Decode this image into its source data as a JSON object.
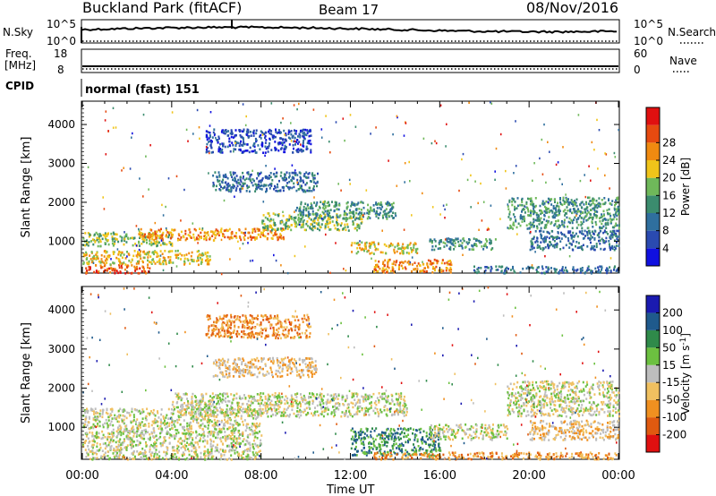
{
  "header": {
    "station": "Buckland Park (fitACF)",
    "beam": "Beam 17",
    "date": "08/Nov/2016"
  },
  "sky_panel": {
    "left_label": "N.Sky",
    "left_top_tick": "10^5",
    "left_bottom_tick": "10^0",
    "right_label": "N.Search",
    "right_top_tick": "10^5",
    "right_bottom_tick": "10^0"
  },
  "freq_panel": {
    "left_label_line1": "Freq.",
    "left_label_line2": "[MHz]",
    "left_top_tick": "18",
    "left_bottom_tick": "8",
    "right_label": "Nave",
    "right_top_tick": "60",
    "right_bottom_tick": "0"
  },
  "cpid": {
    "label": "CPID",
    "mode": "normal (fast) 151"
  },
  "chart_data": [
    {
      "type": "heatmap",
      "name": "power",
      "ylabel": "Slant Range [km]",
      "xlabel": "Time UT",
      "x_ticks": [
        "00:00",
        "04:00",
        "08:00",
        "12:00",
        "16:00",
        "20:00",
        "00:00"
      ],
      "y_ticks": [
        1000,
        2000,
        3000,
        4000
      ],
      "ylim": [
        180,
        4600
      ],
      "xlim_hours": [
        0,
        24
      ],
      "colorbar": {
        "label": "Power [dB]",
        "ticks": [
          "4",
          "8",
          "12",
          "16",
          "20",
          "24",
          "28"
        ],
        "colors": [
          "#1010e0",
          "#2a4ab0",
          "#2f6f9e",
          "#3b8c6e",
          "#6fb85a",
          "#f0c41a",
          "#f08a10",
          "#e64a10",
          "#e01010"
        ]
      },
      "bands": [
        {
          "x0": 0.0,
          "x1": 3.0,
          "y0": 200,
          "y1": 420,
          "level": 7
        },
        {
          "x0": 0.0,
          "x1": 5.8,
          "y0": 420,
          "y1": 780,
          "level": 5
        },
        {
          "x0": 0.0,
          "x1": 4.0,
          "y0": 900,
          "y1": 1250,
          "level": 4
        },
        {
          "x0": 2.5,
          "x1": 9.0,
          "y0": 1050,
          "y1": 1350,
          "level": 6
        },
        {
          "x0": 8.0,
          "x1": 12.5,
          "y0": 1300,
          "y1": 1750,
          "level": 4
        },
        {
          "x0": 9.5,
          "x1": 14.0,
          "y0": 1600,
          "y1": 2050,
          "level": 3
        },
        {
          "x0": 5.8,
          "x1": 10.5,
          "y0": 2300,
          "y1": 2800,
          "level": 2
        },
        {
          "x0": 5.5,
          "x1": 10.2,
          "y0": 3300,
          "y1": 3900,
          "level": 1
        },
        {
          "x0": 12.0,
          "x1": 15.0,
          "y0": 700,
          "y1": 1000,
          "level": 5
        },
        {
          "x0": 13.0,
          "x1": 16.5,
          "y0": 220,
          "y1": 560,
          "level": 6
        },
        {
          "x0": 15.5,
          "x1": 18.5,
          "y0": 800,
          "y1": 1100,
          "level": 3
        },
        {
          "x0": 19.0,
          "x1": 24.0,
          "y0": 1350,
          "y1": 2150,
          "level": 3
        },
        {
          "x0": 20.0,
          "x1": 24.0,
          "y0": 800,
          "y1": 1300,
          "level": 2
        },
        {
          "x0": 17.5,
          "x1": 24.0,
          "y0": 200,
          "y1": 380,
          "level": 2
        }
      ]
    },
    {
      "type": "heatmap",
      "name": "velocity",
      "ylabel": "Slant Range [km]",
      "xlabel": "Time UT",
      "x_ticks": [
        "00:00",
        "04:00",
        "08:00",
        "12:00",
        "16:00",
        "20:00",
        "00:00"
      ],
      "y_ticks": [
        1000,
        2000,
        3000,
        4000
      ],
      "ylim": [
        180,
        4600
      ],
      "xlim_hours": [
        0,
        24
      ],
      "colorbar": {
        "label": "Velocity [m s^-1]",
        "ticks": [
          "200",
          "100",
          "50",
          "15",
          "-15",
          "-50",
          "-100",
          "-200"
        ],
        "colors": [
          "#1a1ab0",
          "#1f5a8c",
          "#2f8a4a",
          "#6cc040",
          "#bdbdbd",
          "#f0c060",
          "#f09020",
          "#e05a10",
          "#e01010"
        ]
      },
      "bands": [
        {
          "x0": 0.0,
          "x1": 8.0,
          "y0": 200,
          "y1": 1500,
          "level": 4
        },
        {
          "x0": 4.0,
          "x1": 14.5,
          "y0": 1300,
          "y1": 1900,
          "level": 4
        },
        {
          "x0": 5.8,
          "x1": 10.5,
          "y0": 2300,
          "y1": 2800,
          "level": 5
        },
        {
          "x0": 5.5,
          "x1": 10.2,
          "y0": 3300,
          "y1": 3900,
          "level": 6
        },
        {
          "x0": 12.0,
          "x1": 16.0,
          "y0": 300,
          "y1": 1000,
          "level": 2
        },
        {
          "x0": 15.5,
          "x1": 19.0,
          "y0": 700,
          "y1": 1100,
          "level": 4
        },
        {
          "x0": 19.0,
          "x1": 24.0,
          "y0": 1300,
          "y1": 2200,
          "level": 4
        },
        {
          "x0": 13.0,
          "x1": 24.0,
          "y0": 200,
          "y1": 380,
          "level": 6
        },
        {
          "x0": 20.0,
          "x1": 24.0,
          "y0": 700,
          "y1": 1200,
          "level": 5
        }
      ]
    }
  ]
}
